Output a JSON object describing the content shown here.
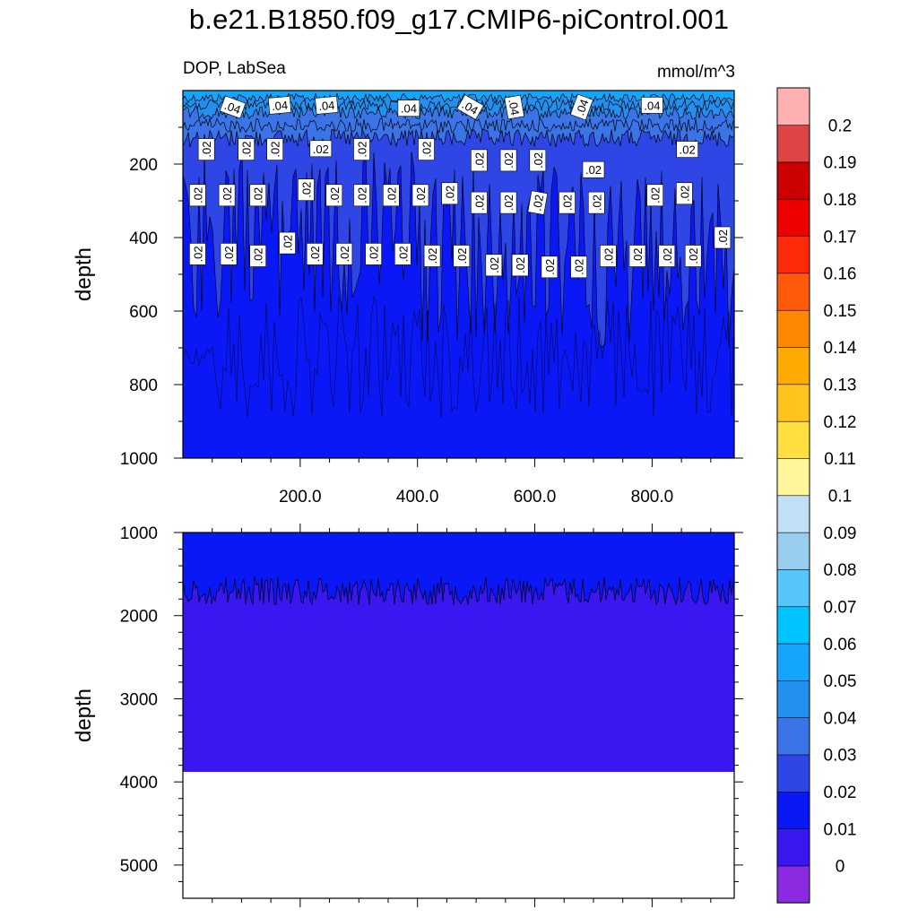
{
  "title": "b.e21.B1850.f09_g17.CMIP6-piControl.001",
  "subtitle_left": "DOP, LabSea",
  "subtitle_right": "mmol/m^3",
  "colors": {
    "c0": "#8a2be2",
    "c1": "#3a16f0",
    "c2": "#0a18f5",
    "c3": "#2e46e6",
    "c4": "#3b74e6",
    "c5": "#2390f0",
    "c6": "#14a6ff",
    "c7": "#00c4ff",
    "c8": "#55c6f7",
    "c9": "#98cdee",
    "c10": "#bfe0f5"
  },
  "chart_data": {
    "type": "heatmap",
    "variable": "DOP",
    "region": "LabSea",
    "units": "mmol/m^3",
    "x_ticks": [
      "200.0",
      "400.0",
      "600.0",
      "800.0"
    ],
    "x_tick_values": [
      200,
      400,
      600,
      800
    ],
    "xlim": [
      0,
      940
    ],
    "panels": [
      {
        "name": "upper",
        "ylabel": "depth",
        "ylim": [
          1000,
          0
        ],
        "y_ticks": [
          "200",
          "400",
          "600",
          "800",
          "1000"
        ],
        "y_tick_values": [
          200,
          400,
          600,
          800,
          1000
        ],
        "bands": [
          {
            "from": 0,
            "to": 20,
            "range": "0.05-0.06"
          },
          {
            "from": 20,
            "to": 60,
            "range": "0.04-0.05"
          },
          {
            "from": 60,
            "to": 140,
            "range": "0.03-0.04"
          },
          {
            "from": 140,
            "to": 530,
            "range": "0.02-0.03"
          },
          {
            "from": 530,
            "to": 1000,
            "range": "0.01-0.02"
          }
        ]
      },
      {
        "name": "lower",
        "ylabel": "depth",
        "ylim": [
          1000,
          5400
        ],
        "y_ticks": [
          "1000",
          "2000",
          "3000",
          "4000",
          "5000"
        ],
        "y_tick_values": [
          1000,
          2000,
          3000,
          4000,
          5000
        ],
        "bands": [
          {
            "from": 1000,
            "to": 1700,
            "range": "0.01-0.02"
          },
          {
            "from": 1700,
            "to": 3880,
            "range": "0-0.01"
          }
        ],
        "missing_below": 3880
      }
    ],
    "contour_labels": [
      {
        "text": ".04",
        "x": 85,
        "y": 45,
        "rot": 20
      },
      {
        "text": ".04",
        "x": 165,
        "y": 40,
        "rot": -5
      },
      {
        "text": ".04",
        "x": 245,
        "y": 40,
        "rot": -5
      },
      {
        "text": ".04",
        "x": 385,
        "y": 48,
        "rot": 0
      },
      {
        "text": ".04",
        "x": 490,
        "y": 45,
        "rot": 30
      },
      {
        "text": ".04",
        "x": 565,
        "y": 45,
        "rot": 80
      },
      {
        "text": ".04",
        "x": 680,
        "y": 45,
        "rot": -70
      },
      {
        "text": ".04",
        "x": 800,
        "y": 40,
        "rot": 0
      },
      {
        "text": ".02",
        "x": 40,
        "y": 160,
        "rot": -90
      },
      {
        "text": ".02",
        "x": 108,
        "y": 160,
        "rot": -90
      },
      {
        "text": ".02",
        "x": 157,
        "y": 160,
        "rot": -90
      },
      {
        "text": ".02",
        "x": 235,
        "y": 158,
        "rot": 0
      },
      {
        "text": ".02",
        "x": 305,
        "y": 160,
        "rot": -90
      },
      {
        "text": ".02",
        "x": 415,
        "y": 160,
        "rot": -90
      },
      {
        "text": ".02",
        "x": 505,
        "y": 190,
        "rot": -90
      },
      {
        "text": ".02",
        "x": 555,
        "y": 190,
        "rot": -90
      },
      {
        "text": ".02",
        "x": 605,
        "y": 190,
        "rot": -90
      },
      {
        "text": ".02",
        "x": 700,
        "y": 215,
        "rot": 0
      },
      {
        "text": ".02",
        "x": 860,
        "y": 160,
        "rot": 0
      },
      {
        "text": ".02",
        "x": 25,
        "y": 285,
        "rot": -90
      },
      {
        "text": ".02",
        "x": 75,
        "y": 285,
        "rot": -90
      },
      {
        "text": ".02",
        "x": 128,
        "y": 285,
        "rot": -90
      },
      {
        "text": ".02",
        "x": 210,
        "y": 270,
        "rot": -90
      },
      {
        "text": ".02",
        "x": 258,
        "y": 285,
        "rot": -90
      },
      {
        "text": ".02",
        "x": 305,
        "y": 285,
        "rot": -90
      },
      {
        "text": ".02",
        "x": 355,
        "y": 285,
        "rot": -90
      },
      {
        "text": ".02",
        "x": 405,
        "y": 285,
        "rot": -90
      },
      {
        "text": ".02",
        "x": 455,
        "y": 280,
        "rot": -90
      },
      {
        "text": ".02",
        "x": 505,
        "y": 305,
        "rot": -90
      },
      {
        "text": ".02",
        "x": 555,
        "y": 305,
        "rot": -90
      },
      {
        "text": ".02",
        "x": 605,
        "y": 305,
        "rot": -80
      },
      {
        "text": ".02",
        "x": 655,
        "y": 305,
        "rot": -90
      },
      {
        "text": ".02",
        "x": 705,
        "y": 305,
        "rot": -90
      },
      {
        "text": ".02",
        "x": 805,
        "y": 285,
        "rot": -90
      },
      {
        "text": ".02",
        "x": 855,
        "y": 280,
        "rot": -90
      },
      {
        "text": ".02",
        "x": 25,
        "y": 445,
        "rot": -90
      },
      {
        "text": ".02",
        "x": 78,
        "y": 445,
        "rot": -90
      },
      {
        "text": ".02",
        "x": 128,
        "y": 450,
        "rot": -90
      },
      {
        "text": ".02",
        "x": 178,
        "y": 415,
        "rot": -90
      },
      {
        "text": ".02",
        "x": 225,
        "y": 445,
        "rot": -90
      },
      {
        "text": ".02",
        "x": 275,
        "y": 445,
        "rot": -90
      },
      {
        "text": ".02",
        "x": 325,
        "y": 445,
        "rot": -90
      },
      {
        "text": ".02",
        "x": 375,
        "y": 445,
        "rot": -90
      },
      {
        "text": ".02",
        "x": 425,
        "y": 450,
        "rot": -90
      },
      {
        "text": ".02",
        "x": 475,
        "y": 450,
        "rot": -90
      },
      {
        "text": ".02",
        "x": 530,
        "y": 475,
        "rot": -90
      },
      {
        "text": ".02",
        "x": 575,
        "y": 475,
        "rot": -90
      },
      {
        "text": ".02",
        "x": 625,
        "y": 480,
        "rot": -90
      },
      {
        "text": ".02",
        "x": 675,
        "y": 480,
        "rot": -90
      },
      {
        "text": ".02",
        "x": 725,
        "y": 450,
        "rot": -90
      },
      {
        "text": ".02",
        "x": 775,
        "y": 450,
        "rot": -90
      },
      {
        "text": ".02",
        "x": 825,
        "y": 450,
        "rot": -90
      },
      {
        "text": ".02",
        "x": 870,
        "y": 450,
        "rot": -90
      },
      {
        "text": ".02",
        "x": 920,
        "y": 400,
        "rot": -90
      }
    ],
    "colorbar": {
      "levels": [
        "0",
        "0.01",
        "0.02",
        "0.03",
        "0.04",
        "0.05",
        "0.06",
        "0.07",
        "0.08",
        "0.09",
        "0.1",
        "0.11",
        "0.12",
        "0.13",
        "0.14",
        "0.15",
        "0.16",
        "0.17",
        "0.18",
        "0.19",
        "0.2"
      ],
      "colors": [
        "#8a2be2",
        "#3a16f0",
        "#0a18f5",
        "#2e46e6",
        "#3b74e6",
        "#2390f0",
        "#14a6ff",
        "#00c4ff",
        "#55c6f7",
        "#98cdee",
        "#bfe0f5",
        "#fff59a",
        "#ffe040",
        "#ffc41e",
        "#ffaa00",
        "#ff8800",
        "#ff5a0a",
        "#ff2a0a",
        "#ee0000",
        "#cc0000",
        "#dd4444",
        "#ffb0b0"
      ]
    }
  }
}
